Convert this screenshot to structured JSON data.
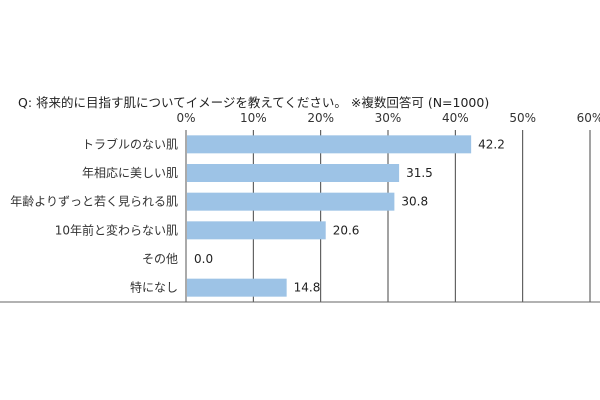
{
  "title": "Q: 将来的に目指す肌についてイメージを教えてください。 ※複数回答可 (N=1000)",
  "chart_data": {
    "type": "bar",
    "orientation": "horizontal",
    "title": "Q: 将来的に目指す肌についてイメージを教えてください。 ※複数回答可 (N=1000)",
    "categories": [
      "トラブルのない肌",
      "年相応に美しい肌",
      "年齢よりずっと若く見られる肌",
      "10年前と変わらない肌",
      "その他",
      "特になし"
    ],
    "values": [
      42.2,
      31.5,
      30.8,
      20.6,
      0.0,
      14.8
    ],
    "value_labels": [
      "42.2",
      "31.5",
      "30.8",
      "20.6",
      "0.0",
      "14.8"
    ],
    "xlim": [
      0,
      60
    ],
    "x_ticks": [
      "0%",
      "10%",
      "20%",
      "30%",
      "40%",
      "50%",
      "60%"
    ],
    "x_tick_position": "top",
    "grid": true,
    "bar_color": "#9dc3e6"
  }
}
